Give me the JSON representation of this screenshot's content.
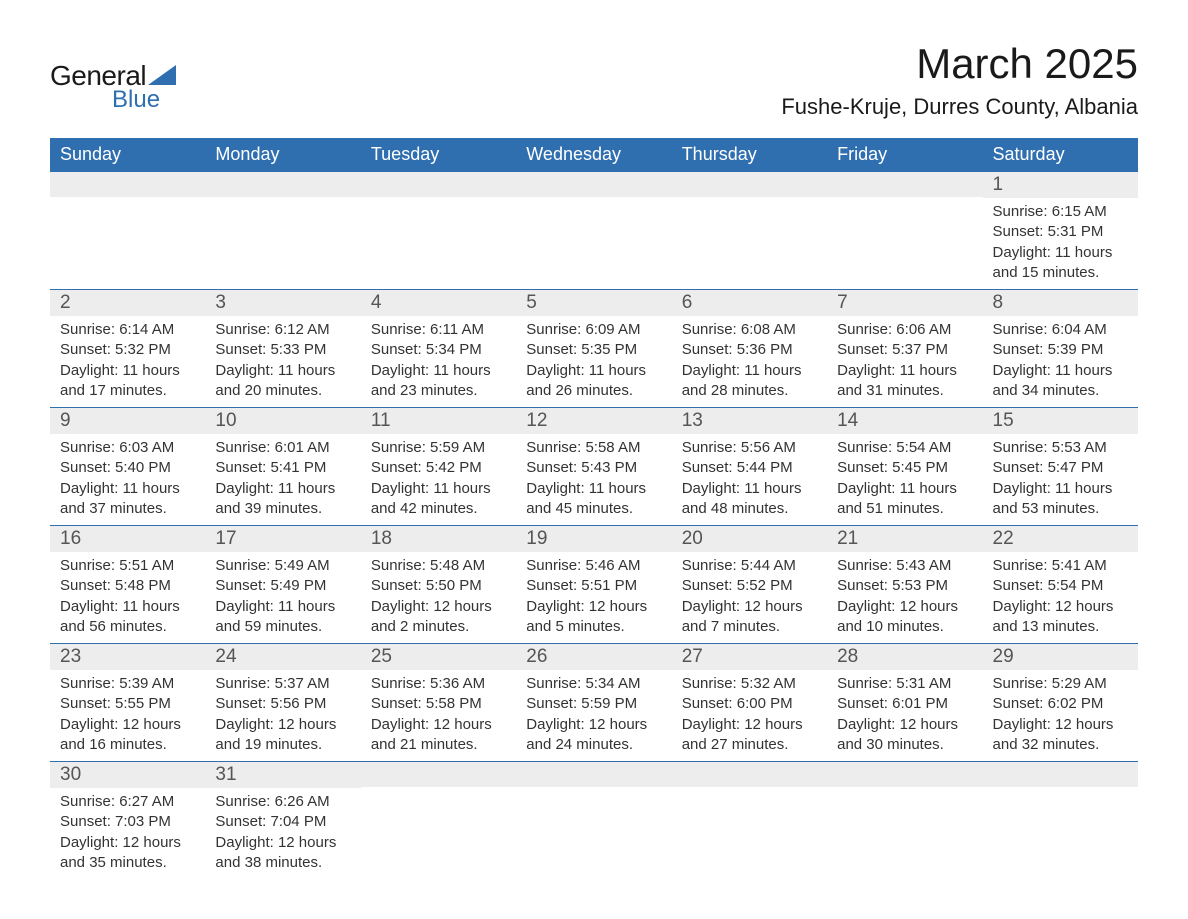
{
  "brand": {
    "general": "General",
    "blue": "Blue",
    "shape_color": "#2f6fb0"
  },
  "title": "March 2025",
  "location": "Fushe-Kruje, Durres County, Albania",
  "colors": {
    "header_bg": "#2f6fb0",
    "header_text": "#ffffff",
    "daynum_bg": "#ededed",
    "daynum_text": "#555555",
    "body_text": "#333333",
    "row_border": "#2f6fb0",
    "page_bg": "#ffffff"
  },
  "typography": {
    "month_title_fontsize": 42,
    "location_fontsize": 22,
    "header_fontsize": 18,
    "daynum_fontsize": 19,
    "cell_fontsize": 15
  },
  "weekdays": [
    "Sunday",
    "Monday",
    "Tuesday",
    "Wednesday",
    "Thursday",
    "Friday",
    "Saturday"
  ],
  "sunrise_label": "Sunrise: ",
  "sunset_label": "Sunset: ",
  "daylight_label": "Daylight: ",
  "weeks": [
    [
      null,
      null,
      null,
      null,
      null,
      null,
      {
        "day": "1",
        "sunrise": "6:15 AM",
        "sunset": "5:31 PM",
        "daylight": "11 hours and 15 minutes."
      }
    ],
    [
      {
        "day": "2",
        "sunrise": "6:14 AM",
        "sunset": "5:32 PM",
        "daylight": "11 hours and 17 minutes."
      },
      {
        "day": "3",
        "sunrise": "6:12 AM",
        "sunset": "5:33 PM",
        "daylight": "11 hours and 20 minutes."
      },
      {
        "day": "4",
        "sunrise": "6:11 AM",
        "sunset": "5:34 PM",
        "daylight": "11 hours and 23 minutes."
      },
      {
        "day": "5",
        "sunrise": "6:09 AM",
        "sunset": "5:35 PM",
        "daylight": "11 hours and 26 minutes."
      },
      {
        "day": "6",
        "sunrise": "6:08 AM",
        "sunset": "5:36 PM",
        "daylight": "11 hours and 28 minutes."
      },
      {
        "day": "7",
        "sunrise": "6:06 AM",
        "sunset": "5:37 PM",
        "daylight": "11 hours and 31 minutes."
      },
      {
        "day": "8",
        "sunrise": "6:04 AM",
        "sunset": "5:39 PM",
        "daylight": "11 hours and 34 minutes."
      }
    ],
    [
      {
        "day": "9",
        "sunrise": "6:03 AM",
        "sunset": "5:40 PM",
        "daylight": "11 hours and 37 minutes."
      },
      {
        "day": "10",
        "sunrise": "6:01 AM",
        "sunset": "5:41 PM",
        "daylight": "11 hours and 39 minutes."
      },
      {
        "day": "11",
        "sunrise": "5:59 AM",
        "sunset": "5:42 PM",
        "daylight": "11 hours and 42 minutes."
      },
      {
        "day": "12",
        "sunrise": "5:58 AM",
        "sunset": "5:43 PM",
        "daylight": "11 hours and 45 minutes."
      },
      {
        "day": "13",
        "sunrise": "5:56 AM",
        "sunset": "5:44 PM",
        "daylight": "11 hours and 48 minutes."
      },
      {
        "day": "14",
        "sunrise": "5:54 AM",
        "sunset": "5:45 PM",
        "daylight": "11 hours and 51 minutes."
      },
      {
        "day": "15",
        "sunrise": "5:53 AM",
        "sunset": "5:47 PM",
        "daylight": "11 hours and 53 minutes."
      }
    ],
    [
      {
        "day": "16",
        "sunrise": "5:51 AM",
        "sunset": "5:48 PM",
        "daylight": "11 hours and 56 minutes."
      },
      {
        "day": "17",
        "sunrise": "5:49 AM",
        "sunset": "5:49 PM",
        "daylight": "11 hours and 59 minutes."
      },
      {
        "day": "18",
        "sunrise": "5:48 AM",
        "sunset": "5:50 PM",
        "daylight": "12 hours and 2 minutes."
      },
      {
        "day": "19",
        "sunrise": "5:46 AM",
        "sunset": "5:51 PM",
        "daylight": "12 hours and 5 minutes."
      },
      {
        "day": "20",
        "sunrise": "5:44 AM",
        "sunset": "5:52 PM",
        "daylight": "12 hours and 7 minutes."
      },
      {
        "day": "21",
        "sunrise": "5:43 AM",
        "sunset": "5:53 PM",
        "daylight": "12 hours and 10 minutes."
      },
      {
        "day": "22",
        "sunrise": "5:41 AM",
        "sunset": "5:54 PM",
        "daylight": "12 hours and 13 minutes."
      }
    ],
    [
      {
        "day": "23",
        "sunrise": "5:39 AM",
        "sunset": "5:55 PM",
        "daylight": "12 hours and 16 minutes."
      },
      {
        "day": "24",
        "sunrise": "5:37 AM",
        "sunset": "5:56 PM",
        "daylight": "12 hours and 19 minutes."
      },
      {
        "day": "25",
        "sunrise": "5:36 AM",
        "sunset": "5:58 PM",
        "daylight": "12 hours and 21 minutes."
      },
      {
        "day": "26",
        "sunrise": "5:34 AM",
        "sunset": "5:59 PM",
        "daylight": "12 hours and 24 minutes."
      },
      {
        "day": "27",
        "sunrise": "5:32 AM",
        "sunset": "6:00 PM",
        "daylight": "12 hours and 27 minutes."
      },
      {
        "day": "28",
        "sunrise": "5:31 AM",
        "sunset": "6:01 PM",
        "daylight": "12 hours and 30 minutes."
      },
      {
        "day": "29",
        "sunrise": "5:29 AM",
        "sunset": "6:02 PM",
        "daylight": "12 hours and 32 minutes."
      }
    ],
    [
      {
        "day": "30",
        "sunrise": "6:27 AM",
        "sunset": "7:03 PM",
        "daylight": "12 hours and 35 minutes."
      },
      {
        "day": "31",
        "sunrise": "6:26 AM",
        "sunset": "7:04 PM",
        "daylight": "12 hours and 38 minutes."
      },
      null,
      null,
      null,
      null,
      null
    ]
  ]
}
